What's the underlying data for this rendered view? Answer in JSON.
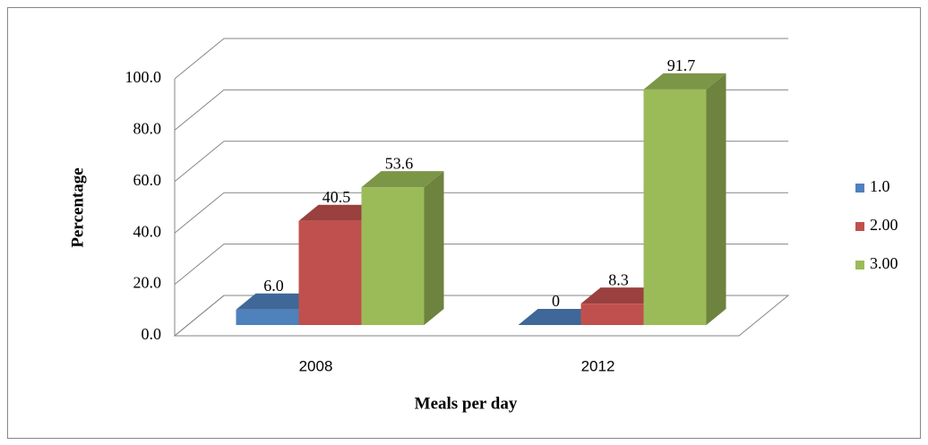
{
  "chart_data": {
    "type": "bar3d",
    "x_label": "Meals per day",
    "y_label": "Percentage",
    "categories": [
      "2008",
      "2012"
    ],
    "series": [
      {
        "name": "1.0",
        "color": "#4f81bd",
        "values": [
          6.0,
          0
        ],
        "value_labels": [
          "6.0",
          "0"
        ]
      },
      {
        "name": "2.00",
        "color": "#c0504d",
        "values": [
          40.5,
          8.3
        ],
        "value_labels": [
          "40.5",
          "8.3"
        ]
      },
      {
        "name": "3.00",
        "color": "#9bbb59",
        "values": [
          53.6,
          91.7
        ],
        "value_labels": [
          "53.6",
          "91.7"
        ]
      }
    ],
    "ylim": [
      0,
      100
    ],
    "yticks": [
      {
        "value": 0,
        "label": "0.0"
      },
      {
        "value": 20,
        "label": "20.0"
      },
      {
        "value": 40,
        "label": "40.0"
      },
      {
        "value": 60,
        "label": "60.0"
      },
      {
        "value": 80,
        "label": "80.0"
      },
      {
        "value": 100,
        "label": "100.0"
      }
    ],
    "grid": true,
    "legend": "right"
  }
}
